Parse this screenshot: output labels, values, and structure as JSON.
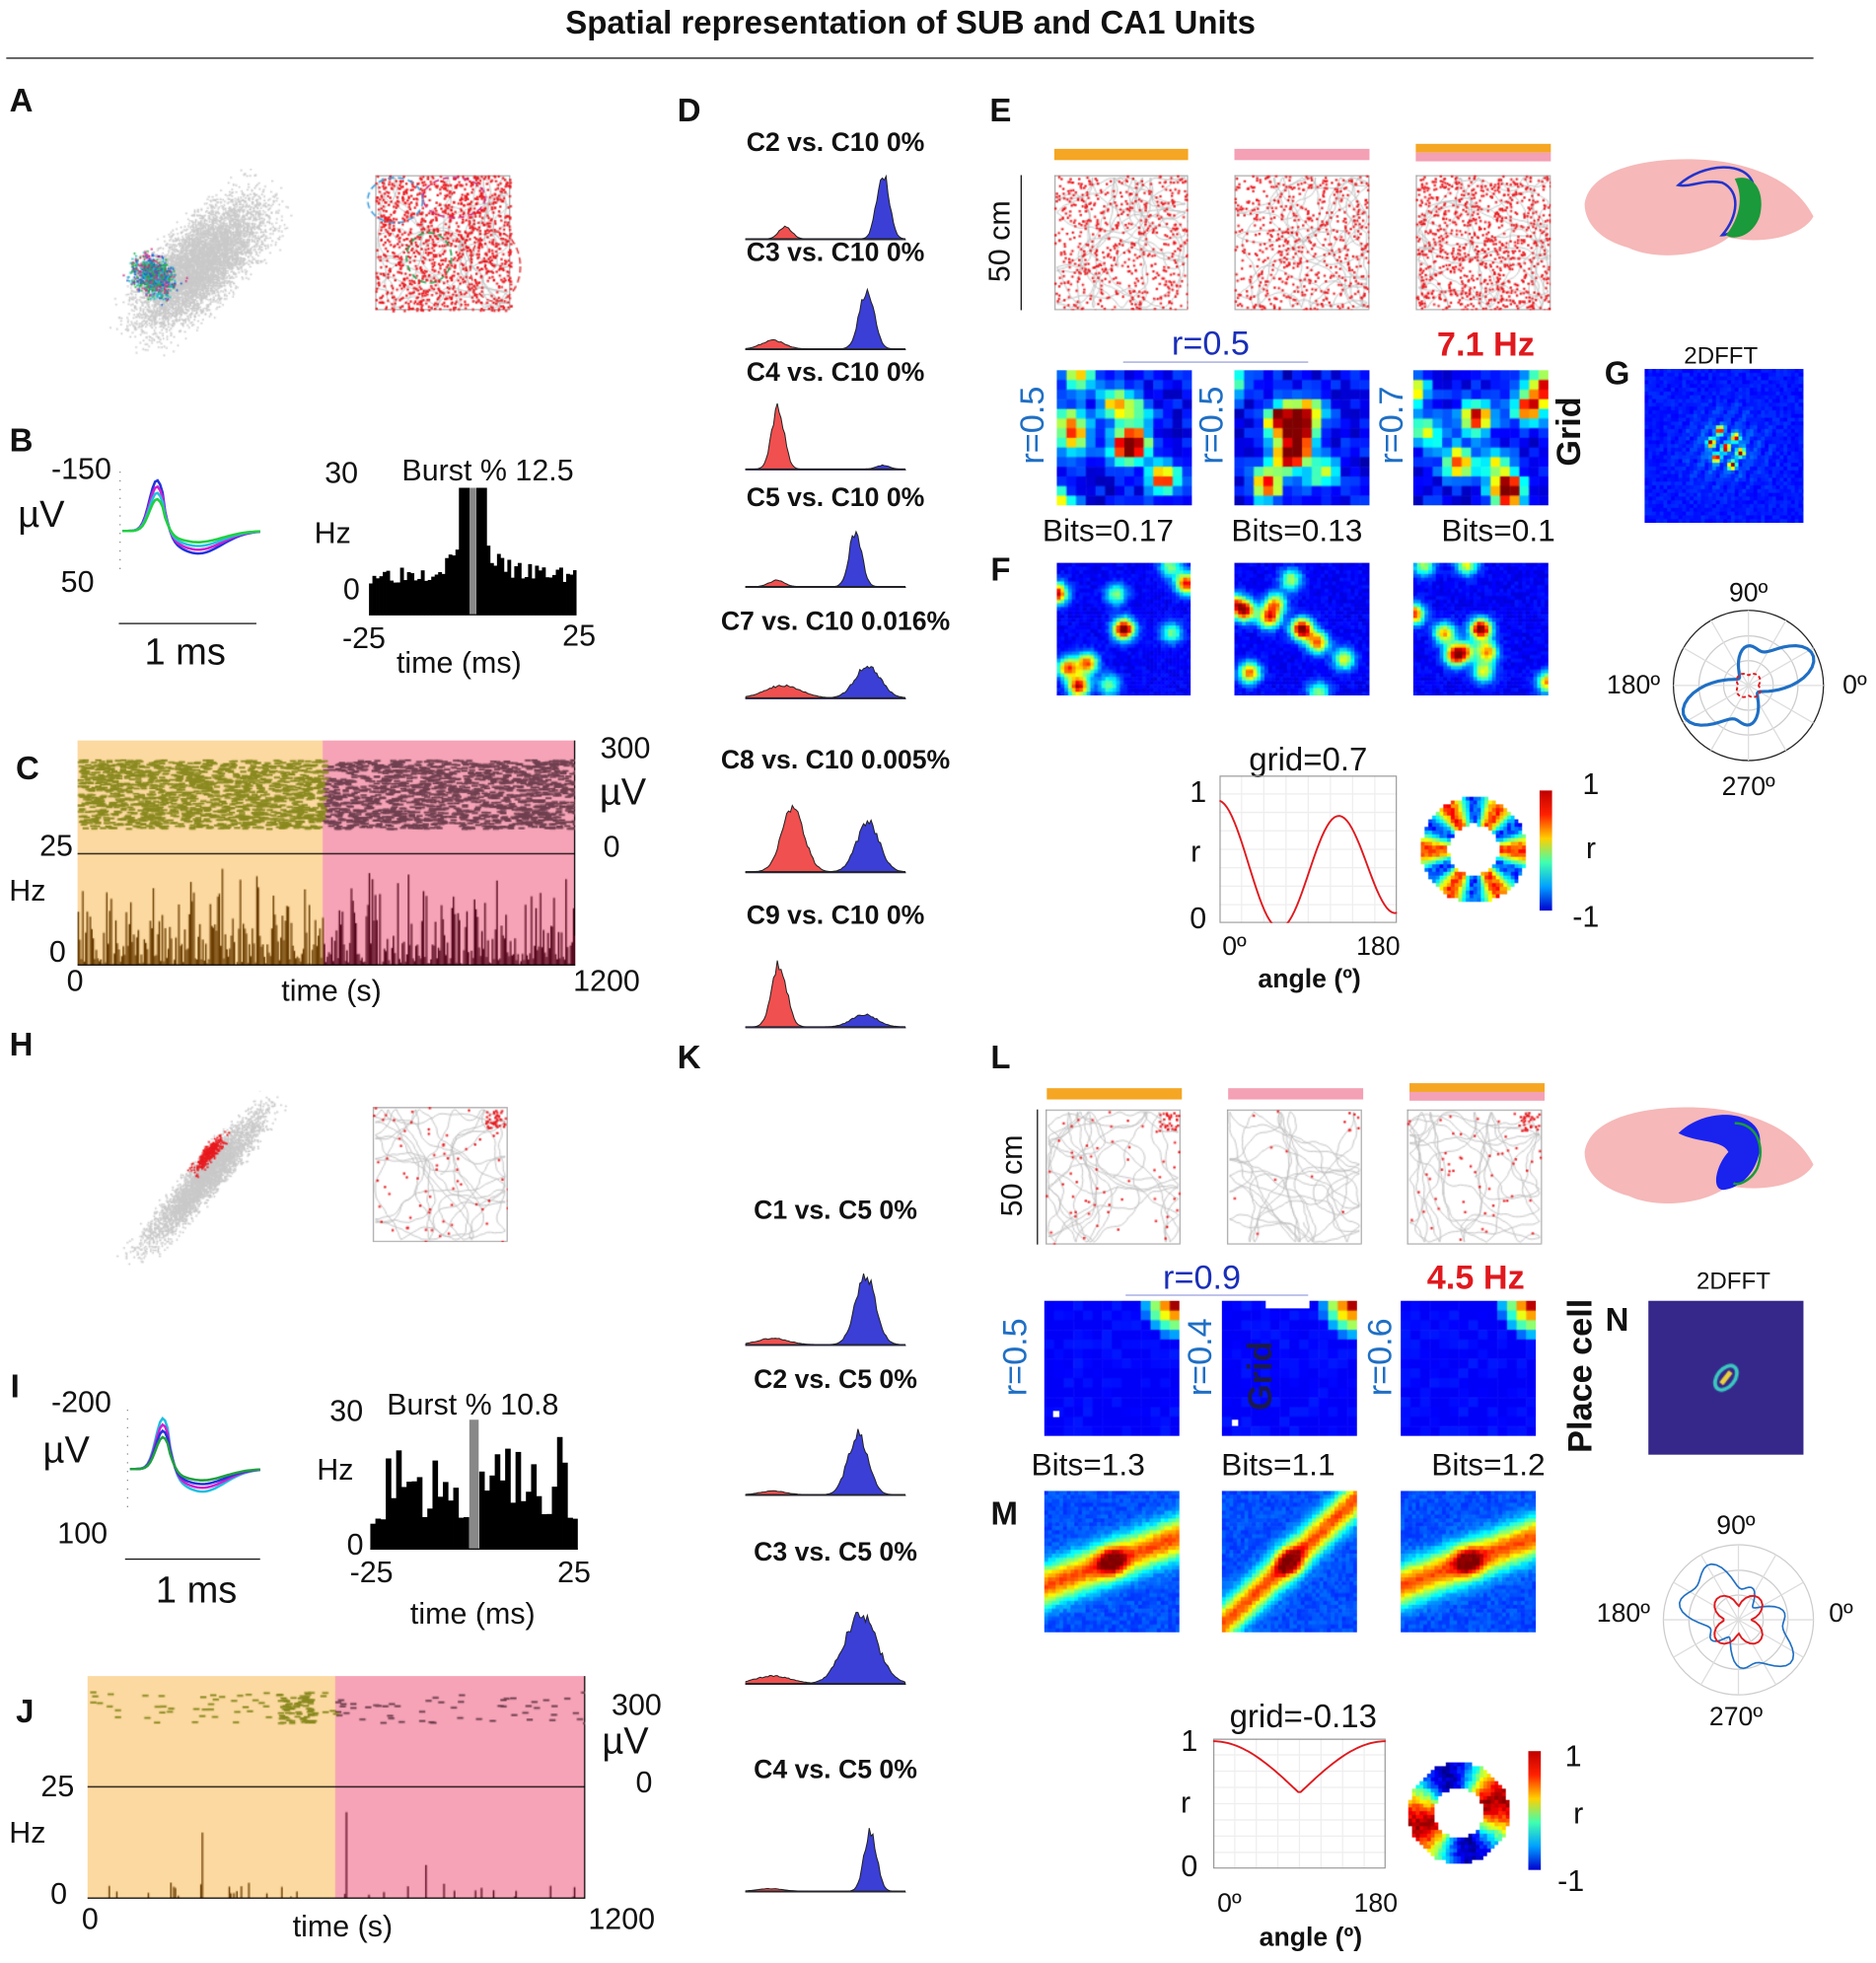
{
  "title": "Spatial representation of SUB and CA1 Units",
  "panel_letters": {
    "A": "A",
    "B": "B",
    "C": "C",
    "D": "D",
    "E": "E",
    "F": "F",
    "G": "G",
    "H": "H",
    "I": "I",
    "J": "J",
    "K": "K",
    "L": "L",
    "M": "M",
    "N": "N"
  },
  "colors": {
    "orange": "#f5a623",
    "pink": "#f4a0b5",
    "spike_red": "#e8191e",
    "blue": "#2233cc",
    "arena_bg_orange": "#fcd9a0",
    "arena_bg_pink": "#f6a3b7"
  },
  "sub": {
    "waveform": {
      "y_top": "-150",
      "y_unit": "µV",
      "y_bottom": "50",
      "scale": "1 ms"
    },
    "acg": {
      "y_max": "30",
      "y_unit": "Hz",
      "y_min": "0",
      "x_min": "-25",
      "x_max": "25",
      "xlabel": "time (ms)",
      "burst": "Burst % 12.5"
    },
    "raster": {
      "amp_max": "300",
      "amp_unit": "µV",
      "amp_min": "0",
      "rate_max": "25",
      "rate_unit": "Hz",
      "rate_min": "0",
      "x_min": "0",
      "x_max": "1200",
      "xlabel": "time (s)"
    },
    "isolation": [
      "C2 vs. C10 0%",
      "C3 vs. C10 0%",
      "C4 vs. C10 0%",
      "C5 vs. C10 0%",
      "C7 vs. C10 0.016%",
      "C8 vs. C10 0.005%",
      "C9 vs. C10 0%"
    ],
    "scale_bar": "50 cm",
    "corr_top": "r=0.5",
    "corr_side": [
      "r=0.5",
      "r=0.5",
      "r=0.7"
    ],
    "peak_rate": "7.1 Hz",
    "cell_type": "Grid",
    "fft": "2DFFT",
    "bits": [
      "Bits=0.17",
      "Bits=0.13",
      "Bits=0.1"
    ],
    "polar": {
      "a90": "90º",
      "a180": "180º",
      "a0": "0º",
      "a270": "270º"
    },
    "gridplot": {
      "title": "grid=0.7",
      "y1": "1",
      "ylabel": "r",
      "y0": "0",
      "x0": "0º",
      "x180": "180",
      "xlabel": "angle (º)",
      "cb_max": "1",
      "cb_label": "r",
      "cb_min": "-1"
    }
  },
  "ca1": {
    "waveform": {
      "y_top": "-200",
      "y_unit": "µV",
      "y_bottom": "100",
      "scale": "1 ms"
    },
    "acg": {
      "y_max": "30",
      "y_unit": "Hz",
      "y_min": "0",
      "x_min": "-25",
      "x_max": "25",
      "xlabel": "time (ms)",
      "burst": "Burst % 10.8"
    },
    "raster": {
      "amp_max": "300",
      "amp_unit": "µV",
      "amp_min": "0",
      "rate_max": "25",
      "rate_unit": "Hz",
      "rate_min": "0",
      "x_min": "0",
      "x_max": "1200",
      "xlabel": "time (s)"
    },
    "isolation": [
      "C1 vs. C5 0%",
      "C2 vs. C5 0%",
      "C3 vs. C5 0%",
      "C4 vs. C5 0%"
    ],
    "scale_bar": "50 cm",
    "corr_top": "r=0.9",
    "corr_side": [
      "r=0.5",
      "r=0.4",
      "r=0.6"
    ],
    "peak_rate": "4.5 Hz",
    "overlay_label": "Grid",
    "cell_type": "Place cell",
    "fft": "2DFFT",
    "bits": [
      "Bits=1.3",
      "Bits=1.1",
      "Bits=1.2"
    ],
    "polar": {
      "a90": "90º",
      "a180": "180º",
      "a0": "0º",
      "a270": "270º"
    },
    "gridplot": {
      "title": "grid=-0.13",
      "y1": "1",
      "ylabel": "r",
      "y0": "0",
      "x0": "0º",
      "x180": "180",
      "xlabel": "angle (º)",
      "cb_max": "1",
      "cb_label": "r",
      "cb_min": "-1"
    }
  }
}
